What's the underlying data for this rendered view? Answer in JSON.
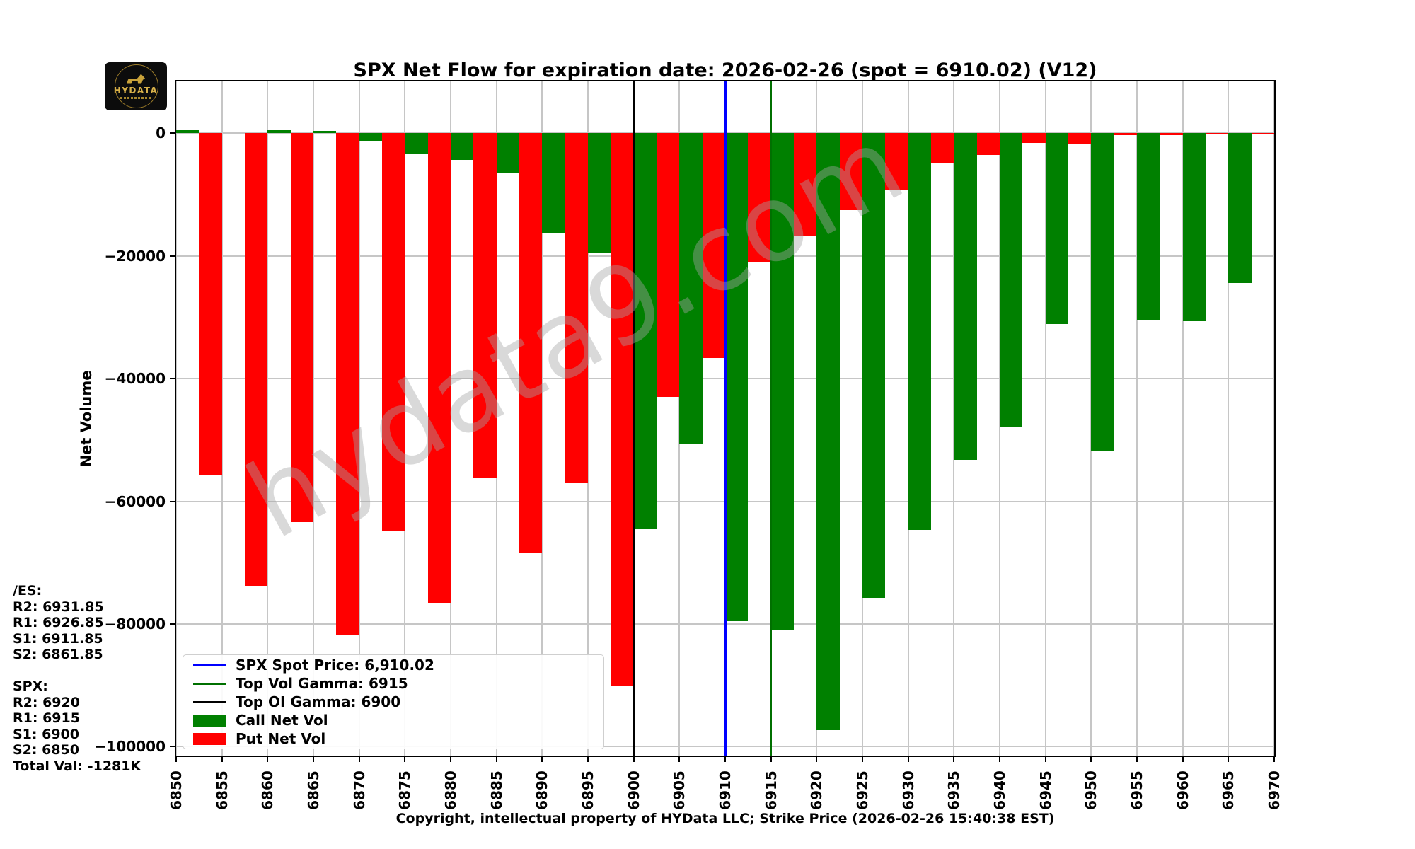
{
  "logo": {
    "text": "HYDATA"
  },
  "watermark": "hydata9.com",
  "info_panel": {
    "lines": [
      "/ES:",
      "R2: 6931.85",
      "R1: 6926.85",
      "S1: 6911.85",
      "S2: 6861.85",
      "",
      "SPX:",
      "R2: 6920",
      "R1: 6915",
      "S1: 6900",
      "S2: 6850",
      "Total Val: -1281K"
    ]
  },
  "legend": [
    {
      "marker": "line",
      "color": "#0000ff",
      "label": "SPX Spot Price: 6,910.02"
    },
    {
      "marker": "line",
      "color": "#007000",
      "label": "Top Vol Gamma: 6915"
    },
    {
      "marker": "line",
      "color": "#000000",
      "label": "Top OI Gamma: 6900"
    },
    {
      "marker": "patch",
      "color": "#008000",
      "label": "Call Net Vol"
    },
    {
      "marker": "patch",
      "color": "#ff0000",
      "label": "Put Net Vol"
    }
  ],
  "axes": {
    "ylabel": "Net Volume",
    "y_ticks": [
      {
        "v": 0,
        "label": "0"
      },
      {
        "v": -20000,
        "label": "−20000"
      },
      {
        "v": -40000,
        "label": "−40000"
      },
      {
        "v": -60000,
        "label": "−60000"
      },
      {
        "v": -80000,
        "label": "−80000"
      },
      {
        "v": -100000,
        "label": "−100000"
      }
    ]
  },
  "chart_data": {
    "type": "bar",
    "title": "SPX Net Flow for expiration date: 2026-02-26 (spot = 6910.02) (V12)",
    "caption": "Copyright, intellectual property of HYData LLC; Strike Price (2026-02-26 15:40:38 EST)",
    "xlabel": "Strike Price",
    "ylabel": "Net Volume",
    "ylim": [
      -101400,
      8450
    ],
    "grid": true,
    "legend_position": "lower left",
    "categories": [
      6850,
      6855,
      6860,
      6865,
      6870,
      6875,
      6880,
      6885,
      6890,
      6895,
      6900,
      6905,
      6910,
      6915,
      6920,
      6925,
      6930,
      6935,
      6940,
      6945,
      6950,
      6955,
      6960,
      6965,
      6970
    ],
    "series": [
      {
        "name": "Call Net Vol",
        "color": "#008000",
        "values": [
          500,
          0,
          500,
          400,
          -1200,
          -3300,
          -4400,
          -6500,
          -16300,
          -19500,
          -64400,
          -50700,
          -79600,
          -80900,
          -97300,
          -75700,
          -64700,
          -53200,
          -48000,
          -31100,
          -51700,
          -30400,
          -30700,
          -24400,
          0
        ]
      },
      {
        "name": "Put Net Vol",
        "color": "#ff0000",
        "values": [
          -55800,
          -73800,
          -63400,
          -81900,
          -64900,
          -76500,
          -56200,
          -68500,
          -56900,
          -90000,
          -43000,
          -36600,
          -21100,
          -16800,
          -12500,
          -9300,
          -4900,
          -3500,
          -1600,
          -1800,
          -300,
          -300,
          -100,
          -100,
          0
        ]
      }
    ],
    "reference_lines": [
      {
        "label": "SPX Spot Price: 6,910.02",
        "x": 6910.02,
        "color": "#0000ff"
      },
      {
        "label": "Top Vol Gamma: 6915",
        "x": 6915,
        "color": "#007000"
      },
      {
        "label": "Top OI Gamma: 6900",
        "x": 6900,
        "color": "#000000"
      }
    ]
  }
}
